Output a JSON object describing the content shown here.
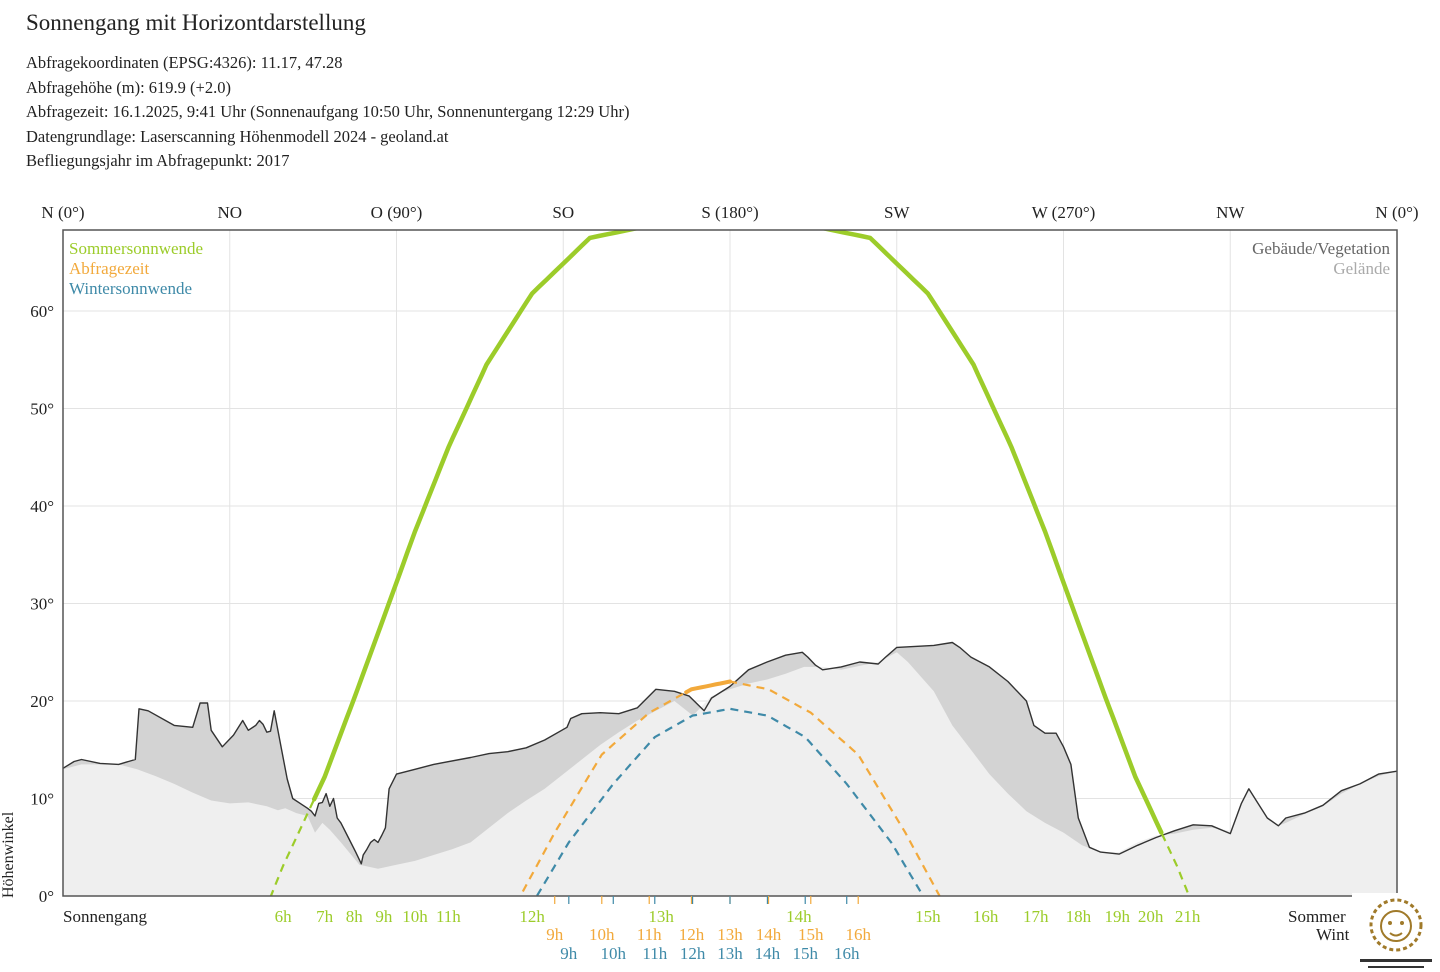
{
  "header": {
    "title": "Sonnengang mit Horizontdarstellung",
    "lines": [
      "Abfragekoordinaten (EPSG:4326): 11.17, 47.28",
      "Abfragehöhe (m): 619.9 (+2.0)",
      "Abfragezeit: 16.1.2025, 9:41 Uhr (Sonnenaufgang 10:50 Uhr,  Sonnenuntergang 12:29 Uhr)",
      "Datengrundlage: Laserscanning Höhenmodell 2024 - geoland.at",
      "Befliegungsjahr im Abfragepunkt: 2017"
    ]
  },
  "chart_data": {
    "type": "line",
    "xlim": [
      0,
      360
    ],
    "ylim": [
      0,
      68
    ],
    "grid": true,
    "x_ticks": [
      {
        "value": 0,
        "label": "N (0°)"
      },
      {
        "value": 45,
        "label": "NO"
      },
      {
        "value": 90,
        "label": "O (90°)"
      },
      {
        "value": 135,
        "label": "SO"
      },
      {
        "value": 180,
        "label": "S (180°)"
      },
      {
        "value": 225,
        "label": "SW"
      },
      {
        "value": 270,
        "label": "W (270°)"
      },
      {
        "value": 315,
        "label": "NW"
      },
      {
        "value": 360,
        "label": "N (0°)"
      }
    ],
    "y_ticks": [
      {
        "value": 0,
        "label": "0°"
      },
      {
        "value": 10,
        "label": "10°"
      },
      {
        "value": 20,
        "label": "20°"
      },
      {
        "value": 30,
        "label": "30°"
      },
      {
        "value": 40,
        "label": "40°"
      },
      {
        "value": 50,
        "label": "50°"
      },
      {
        "value": 60,
        "label": "60°"
      }
    ],
    "ylabel": "Höhenwinkel",
    "legend_left": [
      {
        "label": "Sommersonnwende",
        "color": "#9ccc2a"
      },
      {
        "label": "Abfragezeit",
        "color": "#f2a93b"
      },
      {
        "label": "Wintersonnwende",
        "color": "#3f8aa8"
      }
    ],
    "legend_right": [
      {
        "label": "Gebäude/Vegetation",
        "color": "#666666"
      },
      {
        "label": "Gelände",
        "color": "#aaaaaa"
      }
    ],
    "row_labels": {
      "sonnengang": "Sonnengang",
      "sommer": "Sommer",
      "winter": "Wint"
    },
    "horizon_gebaeude_vegetation": [
      [
        0,
        13.1
      ],
      [
        3,
        13.8
      ],
      [
        5,
        14
      ],
      [
        10,
        13.6
      ],
      [
        15,
        13.5
      ],
      [
        19.5,
        14
      ],
      [
        20.5,
        19.2
      ],
      [
        23,
        19
      ],
      [
        30,
        17.5
      ],
      [
        35,
        17.3
      ],
      [
        37,
        19.8
      ],
      [
        39,
        19.8
      ],
      [
        40,
        17
      ],
      [
        43,
        15.3
      ],
      [
        46,
        16.5
      ],
      [
        48.5,
        18
      ],
      [
        50,
        17
      ],
      [
        52,
        17.5
      ],
      [
        53,
        18
      ],
      [
        54,
        17.6
      ],
      [
        55,
        16.8
      ],
      [
        56,
        16.9
      ],
      [
        57,
        19
      ],
      [
        58,
        17
      ],
      [
        59,
        15
      ],
      [
        60.5,
        12
      ],
      [
        62,
        10
      ],
      [
        64,
        9.5
      ],
      [
        66,
        9
      ],
      [
        67,
        8.7
      ],
      [
        68,
        8.2
      ],
      [
        69,
        9.5
      ],
      [
        70,
        9.6
      ],
      [
        71,
        10.5
      ],
      [
        72,
        9.2
      ],
      [
        73,
        10
      ],
      [
        74,
        8
      ],
      [
        75,
        7.5
      ],
      [
        77,
        6
      ],
      [
        79,
        4.5
      ],
      [
        80.5,
        3.3
      ],
      [
        81,
        4.2
      ],
      [
        82,
        4.8
      ],
      [
        83,
        5.5
      ],
      [
        84,
        5.8
      ],
      [
        85,
        5.5
      ],
      [
        86,
        6.2
      ],
      [
        87,
        7
      ],
      [
        88,
        11
      ],
      [
        90,
        12.5
      ],
      [
        95,
        13
      ],
      [
        100,
        13.5
      ],
      [
        110,
        14.2
      ],
      [
        115,
        14.6
      ],
      [
        120,
        14.8
      ],
      [
        125,
        15.2
      ],
      [
        130,
        16
      ],
      [
        136,
        17.3
      ],
      [
        137,
        18.2
      ],
      [
        140,
        18.7
      ],
      [
        145,
        18.8
      ],
      [
        150,
        18.7
      ],
      [
        155,
        19.3
      ],
      [
        160,
        21.2
      ],
      [
        165,
        21
      ],
      [
        169,
        20.5
      ],
      [
        173,
        19
      ],
      [
        175,
        20.3
      ],
      [
        180,
        21.5
      ],
      [
        185,
        23.2
      ],
      [
        190,
        24
      ],
      [
        195,
        24.7
      ],
      [
        199.5,
        25
      ],
      [
        201,
        24.5
      ],
      [
        203,
        23.7
      ],
      [
        205,
        23.2
      ],
      [
        210,
        23.5
      ],
      [
        215,
        24
      ],
      [
        220,
        23.8
      ],
      [
        222,
        24.5
      ],
      [
        225,
        25.5
      ],
      [
        230,
        25.6
      ],
      [
        235,
        25.7
      ],
      [
        240,
        26
      ],
      [
        242,
        25.5
      ],
      [
        245,
        24.5
      ],
      [
        250,
        23.5
      ],
      [
        255,
        22
      ],
      [
        260,
        20
      ],
      [
        262,
        17.5
      ],
      [
        265,
        16.7
      ],
      [
        268,
        16.7
      ],
      [
        270,
        15.3
      ],
      [
        272,
        13.5
      ],
      [
        274,
        8
      ],
      [
        277,
        5
      ],
      [
        280,
        4.5
      ],
      [
        285,
        4.3
      ],
      [
        290,
        5.2
      ],
      [
        295,
        6
      ],
      [
        300,
        6.7
      ],
      [
        305,
        7.3
      ],
      [
        310,
        7.2
      ],
      [
        315,
        6.4
      ],
      [
        318,
        9.5
      ],
      [
        320,
        11
      ],
      [
        322,
        9.8
      ],
      [
        325,
        8
      ],
      [
        328,
        7.2
      ],
      [
        330,
        8
      ],
      [
        335,
        8.5
      ],
      [
        340,
        9.3
      ],
      [
        345,
        10.8
      ],
      [
        350,
        11.5
      ],
      [
        355,
        12.5
      ],
      [
        360,
        12.8
      ]
    ],
    "horizon_gelaende": [
      [
        0,
        13
      ],
      [
        5,
        13.5
      ],
      [
        10,
        13.5
      ],
      [
        15,
        13.5
      ],
      [
        20,
        13
      ],
      [
        25,
        12.3
      ],
      [
        30,
        11.5
      ],
      [
        35,
        10.6
      ],
      [
        40,
        9.8
      ],
      [
        45,
        9.5
      ],
      [
        50,
        9.6
      ],
      [
        55,
        9.2
      ],
      [
        58,
        8.8
      ],
      [
        60,
        9
      ],
      [
        63,
        8.5
      ],
      [
        66,
        8.2
      ],
      [
        68,
        6.5
      ],
      [
        70,
        7.5
      ],
      [
        72,
        6.8
      ],
      [
        75,
        5.5
      ],
      [
        80,
        3.2
      ],
      [
        85,
        2.8
      ],
      [
        90,
        3.2
      ],
      [
        95,
        3.6
      ],
      [
        100,
        4.2
      ],
      [
        105,
        4.8
      ],
      [
        110,
        5.5
      ],
      [
        115,
        7
      ],
      [
        120,
        8.5
      ],
      [
        125,
        9.8
      ],
      [
        130,
        11
      ],
      [
        135,
        12.5
      ],
      [
        140,
        14
      ],
      [
        145,
        15.5
      ],
      [
        150,
        16.8
      ],
      [
        155,
        18
      ],
      [
        160,
        19
      ],
      [
        165,
        20
      ],
      [
        170,
        18.5
      ],
      [
        175,
        20.5
      ],
      [
        180,
        21.2
      ],
      [
        185,
        21.8
      ],
      [
        190,
        22.2
      ],
      [
        195,
        22.8
      ],
      [
        200,
        23.5
      ],
      [
        205,
        23.5
      ],
      [
        210,
        23.2
      ],
      [
        215,
        23.6
      ],
      [
        220,
        24
      ],
      [
        225,
        25
      ],
      [
        228,
        24
      ],
      [
        235,
        21
      ],
      [
        240,
        17.5
      ],
      [
        245,
        15
      ],
      [
        250,
        12.5
      ],
      [
        255,
        10.5
      ],
      [
        260,
        8.7
      ],
      [
        265,
        7.5
      ],
      [
        270,
        6.5
      ],
      [
        275,
        5.2
      ],
      [
        280,
        4.5
      ],
      [
        285,
        4.5
      ],
      [
        290,
        5.5
      ],
      [
        295,
        6.2
      ],
      [
        300,
        6.4
      ],
      [
        305,
        6.8
      ],
      [
        310,
        7
      ],
      [
        315,
        6.7
      ],
      [
        318,
        9.5
      ],
      [
        320,
        11
      ],
      [
        322,
        9.8
      ],
      [
        325,
        8
      ],
      [
        328,
        7.2
      ],
      [
        330,
        7.5
      ],
      [
        335,
        8.4
      ],
      [
        340,
        9.2
      ],
      [
        345,
        10.5
      ],
      [
        350,
        11.5
      ],
      [
        355,
        12.3
      ],
      [
        360,
        12.8
      ]
    ],
    "series": [
      {
        "name": "Sommersonnwende",
        "color": "#9ccc2a",
        "x": [
          54.5,
          59.4,
          70.6,
          78.6,
          86.6,
          95.0,
          104.0,
          114.3,
          126.6,
          142.2,
          161.4,
          180.0,
          198.6,
          217.8,
          233.4,
          245.7,
          256.0,
          265.0,
          273.4,
          281.4,
          289.4,
          300.6,
          305.5
        ],
        "y": [
          -1.5,
          3.1,
          12.2,
          20.3,
          28.6,
          37.4,
          46.0,
          54.5,
          61.8,
          67.5,
          69.0,
          69.0,
          69.0,
          67.5,
          61.8,
          54.5,
          46.0,
          37.4,
          28.6,
          20.3,
          12.2,
          3.1,
          -1.5
        ],
        "hours": [
          {
            "label": "6h",
            "x": 59.4
          },
          {
            "label": "7h",
            "x": 70.6
          },
          {
            "label": "8h",
            "x": 78.6
          },
          {
            "label": "9h",
            "x": 86.6
          },
          {
            "label": "10h",
            "x": 95.0
          },
          {
            "label": "11h",
            "x": 104.0
          },
          {
            "label": "12h",
            "x": 126.6
          },
          {
            "label": "13h",
            "x": 161.4
          },
          {
            "label": "14h",
            "x": 198.6
          },
          {
            "label": "15h",
            "x": 233.4
          },
          {
            "label": "16h",
            "x": 249.0
          },
          {
            "label": "17h",
            "x": 262.5
          },
          {
            "label": "18h",
            "x": 274.0
          },
          {
            "label": "19h",
            "x": 284.5
          },
          {
            "label": "20h",
            "x": 293.5
          },
          {
            "label": "21h",
            "x": 303.5
          }
        ]
      },
      {
        "name": "Abfragezeit",
        "color": "#f2a93b",
        "x": [
          122.3,
          132.7,
          145.4,
          158.2,
          169.6,
          180.0,
          190.4,
          201.8,
          214.6,
          227.3,
          237.7
        ],
        "y": [
          -0.8,
          6.5,
          14.5,
          18.8,
          21.2,
          22.0,
          21.2,
          18.8,
          14.5,
          6.5,
          -0.8
        ],
        "hours": [
          {
            "label": "9h",
            "x": 132.7
          },
          {
            "label": "10h",
            "x": 145.4
          },
          {
            "label": "11h",
            "x": 158.2
          },
          {
            "label": "12h",
            "x": 169.6
          },
          {
            "label": "13h",
            "x": 180.0
          },
          {
            "label": "14h",
            "x": 190.4
          },
          {
            "label": "15h",
            "x": 201.8
          },
          {
            "label": "16h",
            "x": 214.6
          }
        ]
      },
      {
        "name": "Wintersonnwende",
        "color": "#3f8aa8",
        "x": [
          126.0,
          136.5,
          148.5,
          159.7,
          169.9,
          180.0,
          190.1,
          200.3,
          211.5,
          223.5,
          234.0
        ],
        "y": [
          -1.2,
          5.5,
          11.5,
          16.3,
          18.5,
          19.2,
          18.5,
          16.3,
          11.5,
          5.5,
          -1.2
        ],
        "hours": [
          {
            "label": "9h",
            "x": 136.5
          },
          {
            "label": "10h",
            "x": 148.5
          },
          {
            "label": "11h",
            "x": 159.7
          },
          {
            "label": "12h",
            "x": 169.9
          },
          {
            "label": "13h",
            "x": 180.0
          },
          {
            "label": "14h",
            "x": 190.1
          },
          {
            "label": "15h",
            "x": 200.3
          },
          {
            "label": "16h",
            "x": 211.5
          }
        ]
      }
    ]
  }
}
